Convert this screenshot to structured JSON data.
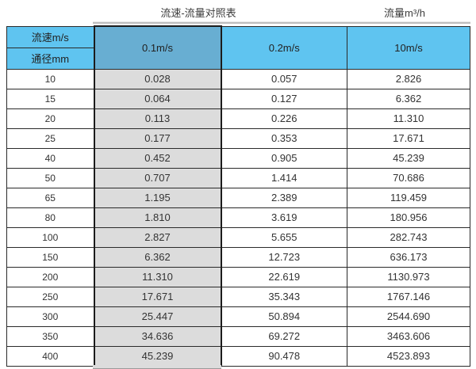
{
  "chart_data": {
    "type": "table",
    "title": "流速-流量对照表",
    "unit_label": "流量m³/h",
    "corner_labels": [
      "流速m/s",
      "通径mm"
    ],
    "velocity_columns": [
      "0.1m/s",
      "0.2m/s",
      "10m/s"
    ],
    "highlighted_column": "0.1m/s",
    "diameters_mm": [
      10,
      15,
      20,
      25,
      40,
      50,
      65,
      80,
      100,
      150,
      200,
      250,
      300,
      350,
      400
    ],
    "rows": [
      {
        "diameter": "10",
        "values": [
          "0.028",
          "0.057",
          "2.826"
        ]
      },
      {
        "diameter": "15",
        "values": [
          "0.064",
          "0.127",
          "6.362"
        ]
      },
      {
        "diameter": "20",
        "values": [
          "0.113",
          "0.226",
          "11.310"
        ]
      },
      {
        "diameter": "25",
        "values": [
          "0.177",
          "0.353",
          "17.671"
        ]
      },
      {
        "diameter": "40",
        "values": [
          "0.452",
          "0.905",
          "45.239"
        ]
      },
      {
        "diameter": "50",
        "values": [
          "0.707",
          "1.414",
          "70.686"
        ]
      },
      {
        "diameter": "65",
        "values": [
          "1.195",
          "2.389",
          "119.459"
        ]
      },
      {
        "diameter": "80",
        "values": [
          "1.810",
          "3.619",
          "180.956"
        ]
      },
      {
        "diameter": "100",
        "values": [
          "2.827",
          "5.655",
          "282.743"
        ]
      },
      {
        "diameter": "150",
        "values": [
          "6.362",
          "12.723",
          "636.173"
        ]
      },
      {
        "diameter": "200",
        "values": [
          "11.310",
          "22.619",
          "1130.973"
        ]
      },
      {
        "diameter": "250",
        "values": [
          "17.671",
          "35.343",
          "1767.146"
        ]
      },
      {
        "diameter": "300",
        "values": [
          "25.447",
          "50.894",
          "2544.690"
        ]
      },
      {
        "diameter": "350",
        "values": [
          "34.636",
          "69.272",
          "3463.606"
        ]
      },
      {
        "diameter": "400",
        "values": [
          "45.239",
          "90.478",
          "4523.893"
        ]
      }
    ]
  },
  "colors": {
    "header_blue": "#5fc4f0",
    "header_blue_dark": "#68aed2",
    "highlight_column_gray": "#dcdcdc",
    "border_dark": "#2a2a2a",
    "text": "#333333"
  }
}
